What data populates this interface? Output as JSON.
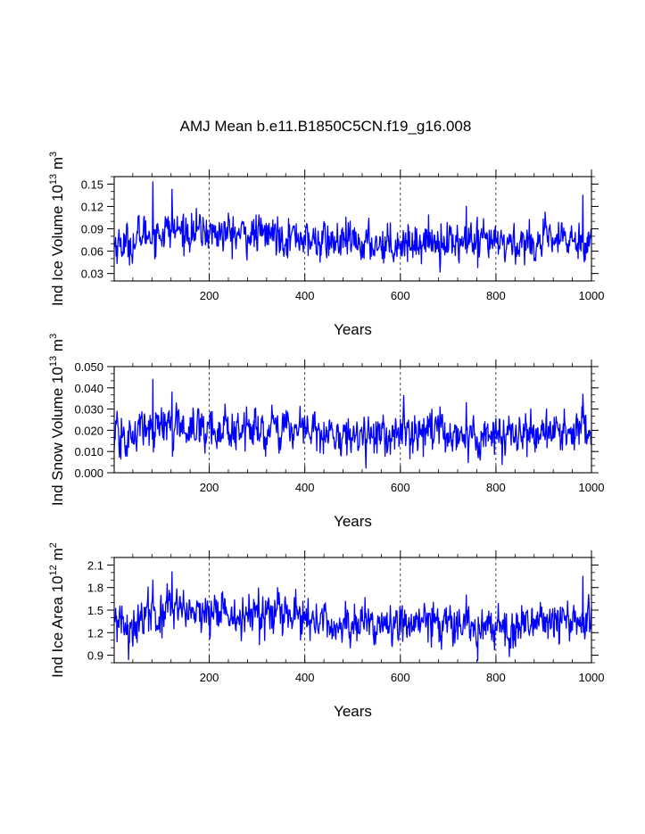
{
  "title": "AMJ Mean b.e11.B1850C5CN.f19_g16.008",
  "colors": {
    "series": "#0000ff",
    "axis": "#000000",
    "grid": "#000000"
  },
  "chart_data": [
    {
      "type": "line",
      "ylabel_main": "Ind Ice Volume 10",
      "ylabel_exp": "13",
      "ylabel_unit": " m",
      "ylabel_unit_exp": "3",
      "xlabel": "Years",
      "xlim": [
        1,
        1000
      ],
      "ylim": [
        0.02,
        0.16
      ],
      "x_ticks": [
        200,
        400,
        600,
        800,
        1000
      ],
      "x_tick_labels": [
        "200",
        "400",
        "600",
        "800",
        "1000"
      ],
      "y_ticks": [
        0.03,
        0.06,
        0.09,
        0.12,
        0.15
      ],
      "y_tick_labels": [
        "0.03",
        "0.06",
        "0.09",
        "0.12",
        "0.15"
      ],
      "vgrid": [
        200,
        400,
        600,
        800
      ],
      "series": {
        "name": "Ind Ice Volume",
        "years": 1000,
        "values_by_50yr_block_mean": [
          0.07,
          0.083,
          0.088,
          0.086,
          0.084,
          0.082,
          0.083,
          0.08,
          0.073,
          0.072,
          0.07,
          0.071,
          0.072,
          0.074,
          0.072,
          0.07,
          0.07,
          0.072,
          0.074,
          0.075
        ],
        "peaks": [
          {
            "year": 82,
            "value": 0.153
          },
          {
            "year": 122,
            "value": 0.143
          },
          {
            "year": 738,
            "value": 0.12
          },
          {
            "year": 982,
            "value": 0.135
          }
        ],
        "min": {
          "year": 762,
          "value": 0.038
        },
        "std": 0.012
      }
    },
    {
      "type": "line",
      "ylabel_main": "Ind Snow Volume 10",
      "ylabel_exp": "13",
      "ylabel_unit": " m",
      "ylabel_unit_exp": "3",
      "xlabel": "Years",
      "xlim": [
        1,
        1000
      ],
      "ylim": [
        0.0,
        0.05
      ],
      "x_ticks": [
        200,
        400,
        600,
        800,
        1000
      ],
      "x_tick_labels": [
        "200",
        "400",
        "600",
        "800",
        "1000"
      ],
      "y_ticks": [
        0.0,
        0.01,
        0.02,
        0.03,
        0.04,
        0.05
      ],
      "y_tick_labels": [
        "0.000",
        "0.010",
        "0.020",
        "0.030",
        "0.040",
        "0.050"
      ],
      "vgrid": [
        200,
        400,
        600,
        800
      ],
      "series": {
        "name": "Ind Snow Volume",
        "years": 1000,
        "values_by_50yr_block_mean": [
          0.016,
          0.021,
          0.022,
          0.021,
          0.021,
          0.02,
          0.02,
          0.021,
          0.019,
          0.018,
          0.018,
          0.018,
          0.018,
          0.019,
          0.018,
          0.017,
          0.017,
          0.018,
          0.019,
          0.019
        ],
        "peaks": [
          {
            "year": 82,
            "value": 0.044
          },
          {
            "year": 122,
            "value": 0.038
          },
          {
            "year": 738,
            "value": 0.033
          },
          {
            "year": 982,
            "value": 0.037
          }
        ],
        "min": {
          "year": 762,
          "value": 0.009
        },
        "std": 0.0045
      }
    },
    {
      "type": "line",
      "ylabel_main": "Ind Ice Area 10",
      "ylabel_exp": "12",
      "ylabel_unit": " m",
      "ylabel_unit_exp": "2",
      "xlabel": "Years",
      "xlim": [
        1,
        1000
      ],
      "ylim": [
        0.8,
        2.2
      ],
      "x_ticks": [
        200,
        400,
        600,
        800,
        1000
      ],
      "x_tick_labels": [
        "200",
        "400",
        "600",
        "800",
        "1000"
      ],
      "y_ticks": [
        0.9,
        1.2,
        1.5,
        1.8,
        2.1
      ],
      "y_tick_labels": [
        "0.9",
        "1.2",
        "1.5",
        "1.8",
        "2.1"
      ],
      "vgrid": [
        200,
        400,
        600,
        800
      ],
      "series": {
        "name": "Ind Ice Area",
        "years": 1000,
        "values_by_50yr_block_mean": [
          1.3,
          1.43,
          1.48,
          1.45,
          1.44,
          1.42,
          1.43,
          1.4,
          1.33,
          1.32,
          1.3,
          1.31,
          1.32,
          1.34,
          1.32,
          1.3,
          1.3,
          1.32,
          1.34,
          1.35
        ],
        "peaks": [
          {
            "year": 82,
            "value": 1.9
          },
          {
            "year": 122,
            "value": 2.01
          },
          {
            "year": 738,
            "value": 1.7
          },
          {
            "year": 982,
            "value": 1.95
          }
        ],
        "min": {
          "year": 762,
          "value": 0.83
        },
        "std": 0.13
      }
    }
  ]
}
